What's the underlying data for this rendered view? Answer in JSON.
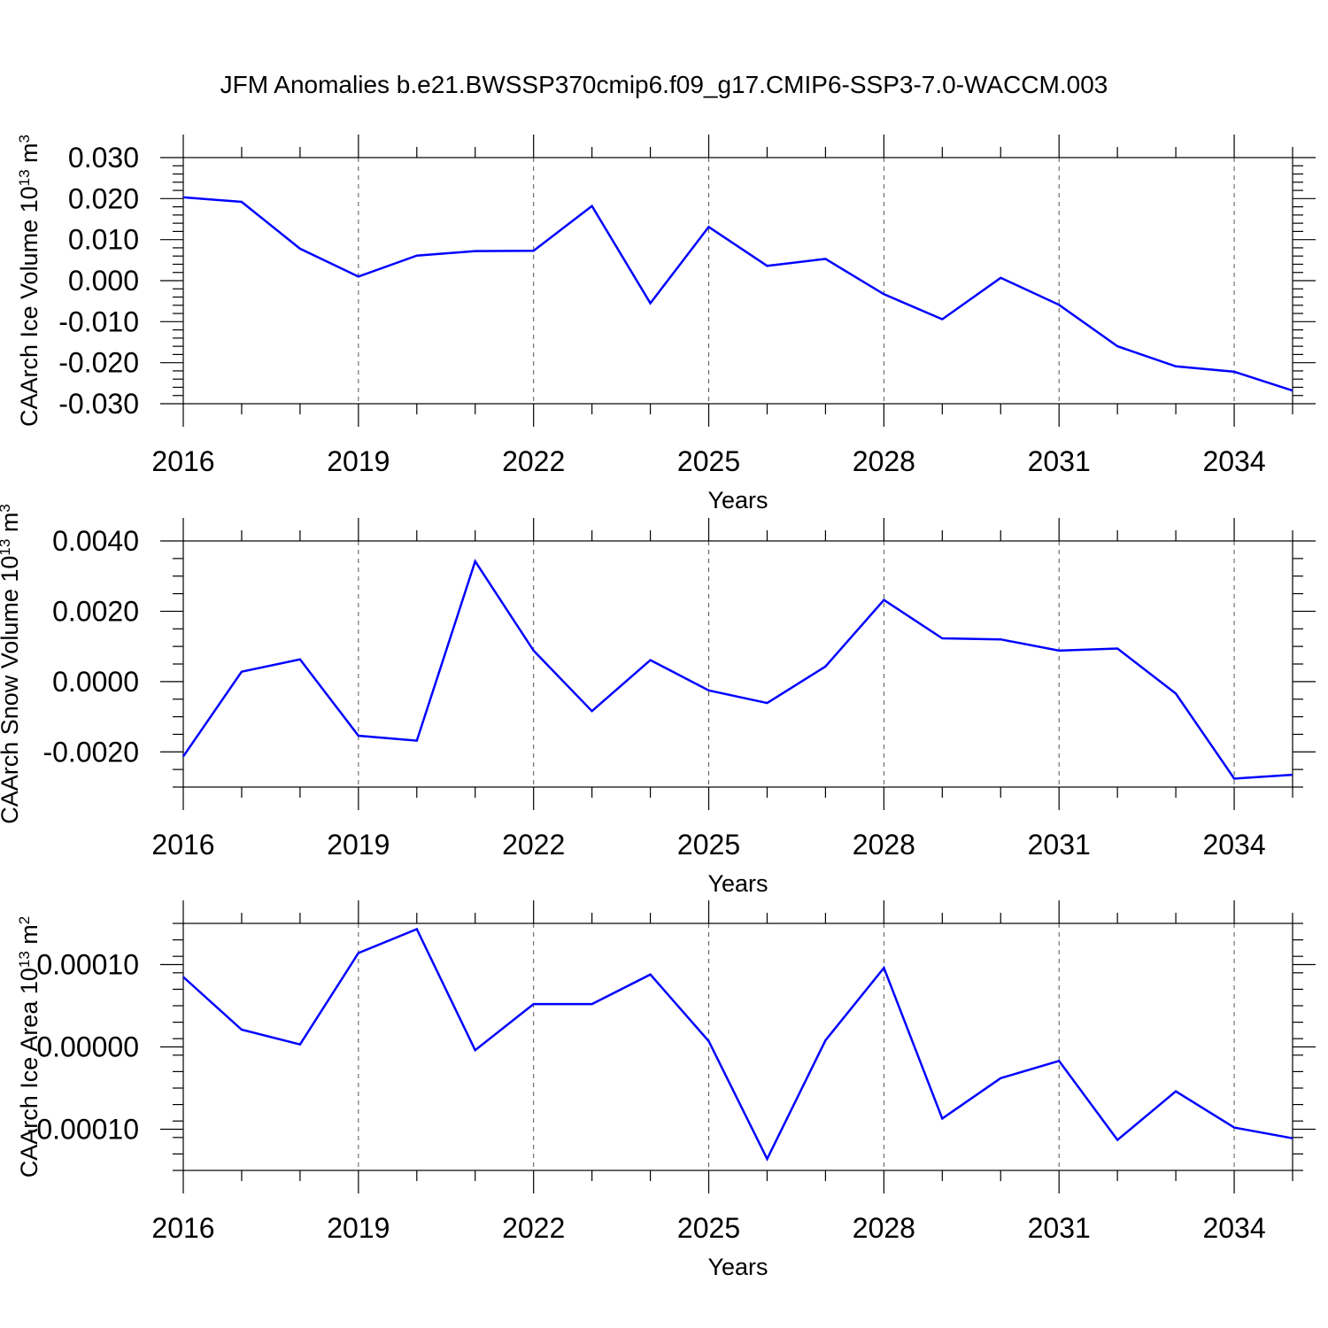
{
  "figure_title": "JFM Anomalies b.e21.BWSSP370cmip6.f09_g17.CMIP6-SSP3-7.0-WACCM.003",
  "chart_data": [
    {
      "type": "line",
      "title": "",
      "ylabel": "CAArch Ice Volume 10",
      "ylabel_sup": "13",
      "ylabel_unit": "m",
      "ylabel_unit_sup": "3",
      "xlabel": "Years",
      "xlim": [
        2016,
        2035
      ],
      "ylim": [
        -0.03,
        0.03
      ],
      "major_yticks": [
        -0.03,
        -0.02,
        -0.01,
        0.0,
        0.01,
        0.02,
        0.03
      ],
      "ytick_labels": [
        "-0.030",
        "-0.020",
        "-0.010",
        "0.000",
        "0.010",
        "0.020",
        "0.030"
      ],
      "minor_ystep": 0.002,
      "major_xticks": [
        2016,
        2019,
        2022,
        2025,
        2028,
        2031,
        2034
      ],
      "xtick_labels": [
        "2016",
        "2019",
        "2022",
        "2025",
        "2028",
        "2031",
        "2034"
      ],
      "grid_x": true,
      "series": [
        {
          "name": "CAArch Ice Volume",
          "color": "#0000ff",
          "x": [
            2016,
            2017,
            2018,
            2019,
            2020,
            2021,
            2022,
            2023,
            2024,
            2025,
            2026,
            2027,
            2028,
            2029,
            2030,
            2031,
            2032,
            2033,
            2034,
            2035
          ],
          "values": [
            0.0203,
            0.0192,
            0.0078,
            0.001,
            0.0061,
            0.0072,
            0.0073,
            0.0182,
            -0.0055,
            0.0131,
            0.0036,
            0.0053,
            -0.0033,
            -0.0094,
            0.0007,
            -0.0059,
            -0.016,
            -0.0209,
            -0.0222,
            -0.0268
          ]
        }
      ]
    },
    {
      "type": "line",
      "title": "",
      "ylabel": "CAArch Snow Volume 10",
      "ylabel_sup": "13",
      "ylabel_unit": "m",
      "ylabel_unit_sup": "3",
      "xlabel": "Years",
      "xlim": [
        2016,
        2035
      ],
      "ylim": [
        -0.003,
        0.004
      ],
      "major_yticks": [
        -0.002,
        0.0,
        0.002,
        0.004
      ],
      "ytick_labels": [
        "-0.0020",
        "0.0000",
        "0.0020",
        "0.0040"
      ],
      "minor_ystep": 0.0005,
      "major_xticks": [
        2016,
        2019,
        2022,
        2025,
        2028,
        2031,
        2034
      ],
      "xtick_labels": [
        "2016",
        "2019",
        "2022",
        "2025",
        "2028",
        "2031",
        "2034"
      ],
      "grid_x": true,
      "series": [
        {
          "name": "CAArch Snow Volume",
          "color": "#0000ff",
          "x": [
            2016,
            2017,
            2018,
            2019,
            2020,
            2021,
            2022,
            2023,
            2024,
            2025,
            2026,
            2027,
            2028,
            2029,
            2030,
            2031,
            2032,
            2033,
            2034,
            2035
          ],
          "values": [
            -0.00213,
            0.00028,
            0.00063,
            -0.00154,
            -0.00168,
            0.00342,
            0.00088,
            -0.00084,
            0.00061,
            -0.00025,
            -0.00061,
            0.00043,
            0.00232,
            0.00123,
            0.0012,
            0.00088,
            0.00094,
            -0.00034,
            -0.00276,
            -0.00265
          ]
        }
      ]
    },
    {
      "type": "line",
      "title": "",
      "ylabel": "CAArch Ice Area 10",
      "ylabel_sup": "13",
      "ylabel_unit": "m",
      "ylabel_unit_sup": "2",
      "xlabel": "Years",
      "xlim": [
        2016,
        2035
      ],
      "ylim": [
        -0.00015,
        0.00015
      ],
      "major_yticks": [
        -0.0001,
        0.0,
        0.0001
      ],
      "ytick_labels": [
        "-0.00010",
        "0.00000",
        "0.00010"
      ],
      "minor_ystep": 2e-05,
      "major_xticks": [
        2016,
        2019,
        2022,
        2025,
        2028,
        2031,
        2034
      ],
      "xtick_labels": [
        "2016",
        "2019",
        "2022",
        "2025",
        "2028",
        "2031",
        "2034"
      ],
      "grid_x": true,
      "series": [
        {
          "name": "CAArch Ice Area",
          "color": "#0000ff",
          "x": [
            2016,
            2017,
            2018,
            2019,
            2020,
            2021,
            2022,
            2023,
            2024,
            2025,
            2026,
            2027,
            2028,
            2029,
            2030,
            2031,
            2032,
            2033,
            2034,
            2035
          ],
          "values": [
            8.5e-05,
            2.1e-05,
            3e-06,
            0.000114,
            0.000143,
            -4e-06,
            5.2e-05,
            5.2e-05,
            8.8e-05,
            7e-06,
            -0.000136,
            8e-06,
            9.6e-05,
            -8.7e-05,
            -3.8e-05,
            -1.7e-05,
            -0.000113,
            -5.4e-05,
            -9.8e-05,
            -0.000111
          ]
        }
      ]
    }
  ]
}
